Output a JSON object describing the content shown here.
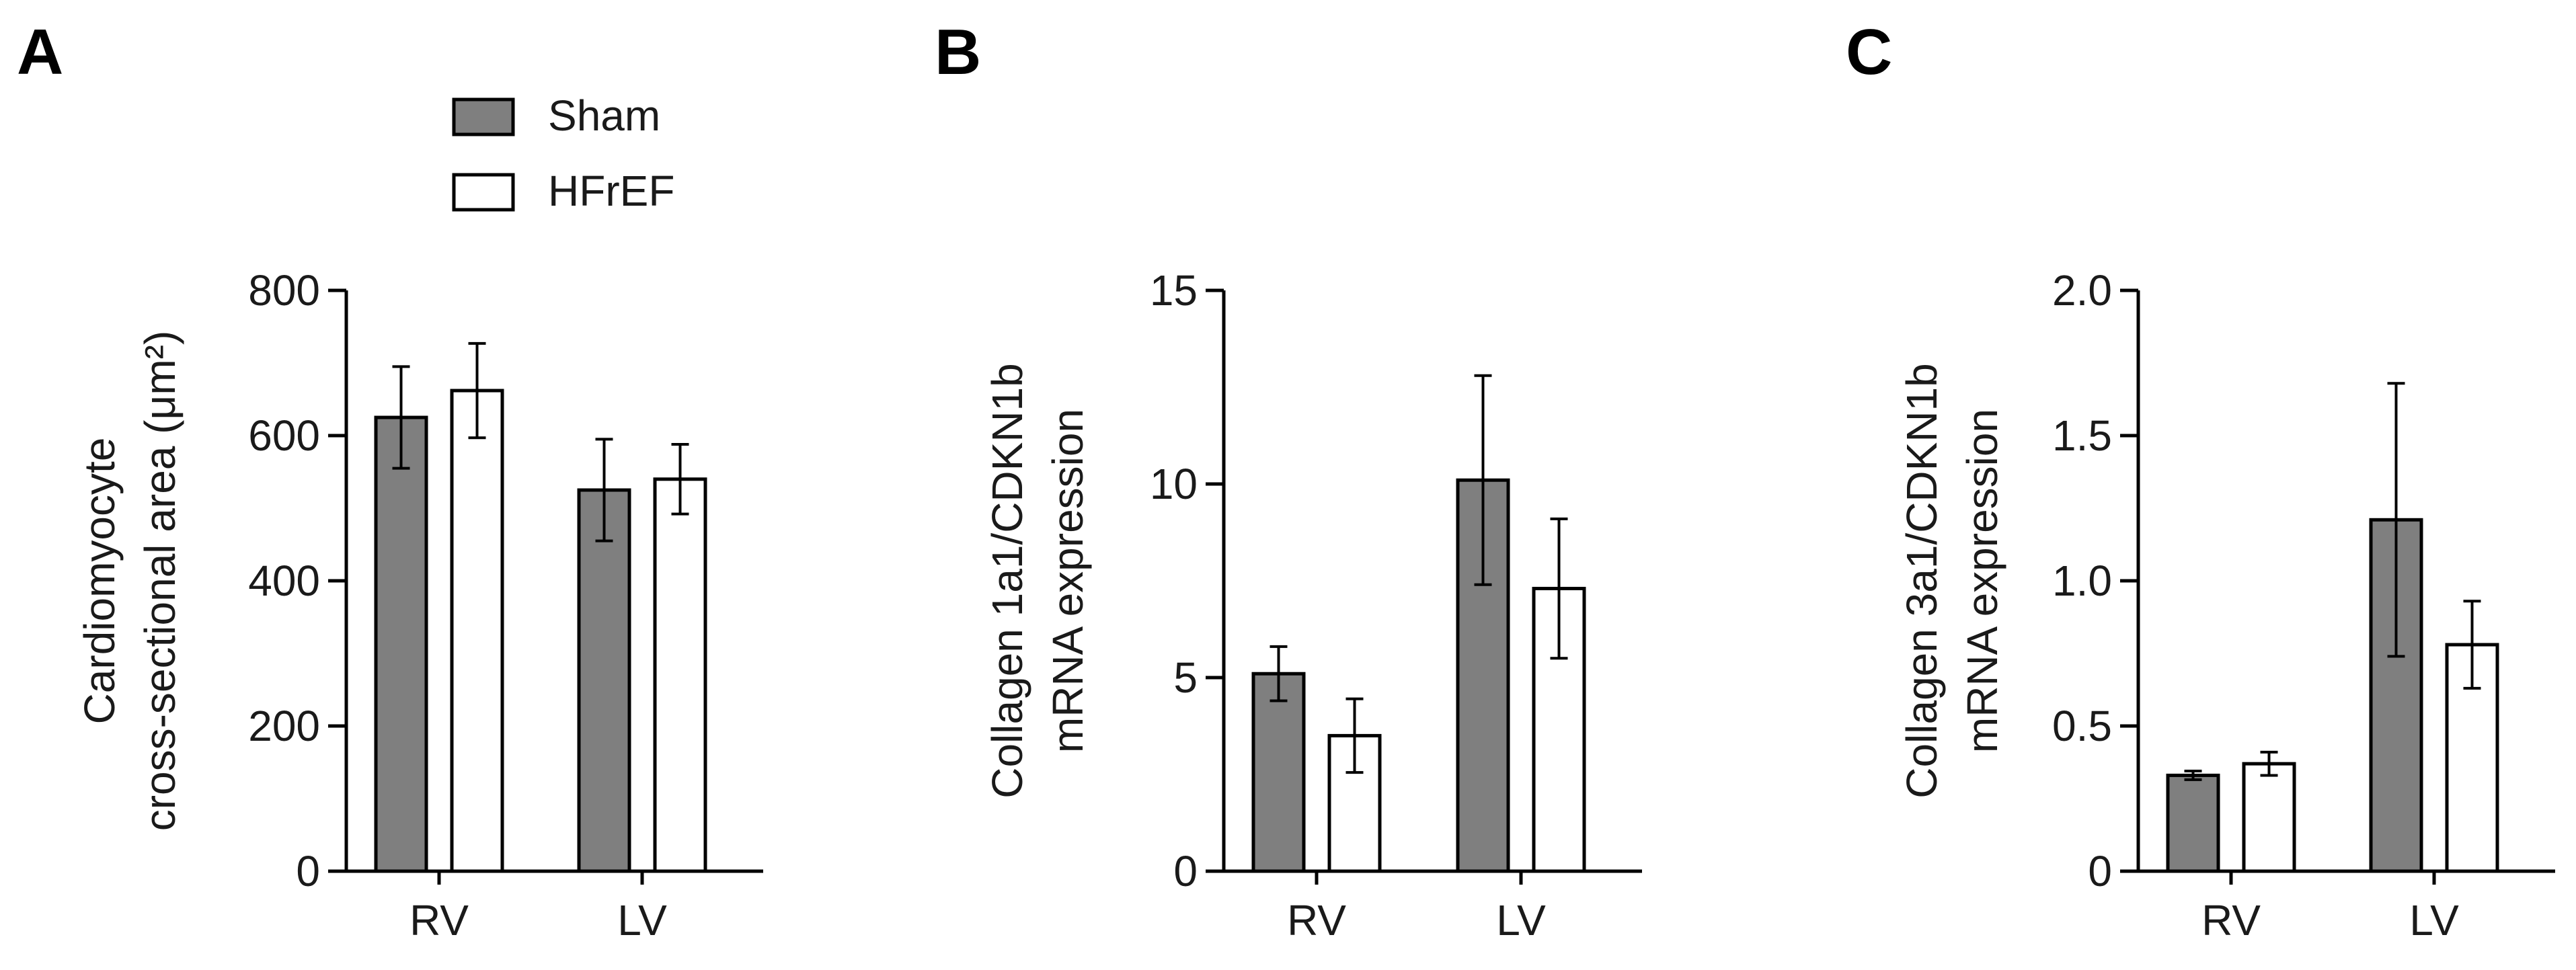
{
  "legend": {
    "items": [
      {
        "label": "Sham",
        "color": "#7f7f7f"
      },
      {
        "label": "HFrEF",
        "color": "#ffffff"
      }
    ]
  },
  "chart_data": [
    {
      "type": "bar",
      "panel": "A",
      "categories": [
        "RV",
        "LV"
      ],
      "ylabel_lines": [
        "Cardiomyocyte",
        "cross-sectional area (μm²)"
      ],
      "ylim": [
        0,
        800
      ],
      "yticks": [
        0,
        200,
        400,
        600,
        800
      ],
      "ytick_labels": [
        "0",
        "200",
        "400",
        "600",
        "800"
      ],
      "series": [
        {
          "name": "Sham",
          "color": "#7f7f7f",
          "values": [
            625,
            525
          ],
          "errors": [
            70,
            70
          ]
        },
        {
          "name": "HFrEF",
          "color": "#ffffff",
          "values": [
            662,
            540
          ],
          "errors": [
            65,
            48
          ]
        }
      ]
    },
    {
      "type": "bar",
      "panel": "B",
      "categories": [
        "RV",
        "LV"
      ],
      "ylabel_lines": [
        "Collagen 1a1/CDKN1b",
        "mRNA expression"
      ],
      "ylim": [
        0,
        15
      ],
      "yticks": [
        0,
        5,
        10,
        15
      ],
      "ytick_labels": [
        "0",
        "5",
        "10",
        "15"
      ],
      "series": [
        {
          "name": "Sham",
          "color": "#7f7f7f",
          "values": [
            5.1,
            10.1
          ],
          "errors": [
            0.7,
            2.7
          ]
        },
        {
          "name": "HFrEF",
          "color": "#ffffff",
          "values": [
            3.5,
            7.3
          ],
          "errors": [
            0.95,
            1.8
          ]
        }
      ]
    },
    {
      "type": "bar",
      "panel": "C",
      "categories": [
        "RV",
        "LV"
      ],
      "ylabel_lines": [
        "Collagen 3a1/CDKN1b",
        "mRNA expression"
      ],
      "ylim": [
        0,
        2.0
      ],
      "yticks": [
        0,
        0.5,
        1.0,
        1.5,
        2.0
      ],
      "ytick_labels": [
        "0",
        "0.5",
        "1.0",
        "1.5",
        "2.0"
      ],
      "series": [
        {
          "name": "Sham",
          "color": "#7f7f7f",
          "values": [
            0.33,
            1.21
          ],
          "errors": [
            0.015,
            0.47
          ]
        },
        {
          "name": "HFrEF",
          "color": "#ffffff",
          "values": [
            0.37,
            0.78
          ],
          "errors": [
            0.04,
            0.15
          ]
        }
      ]
    }
  ]
}
